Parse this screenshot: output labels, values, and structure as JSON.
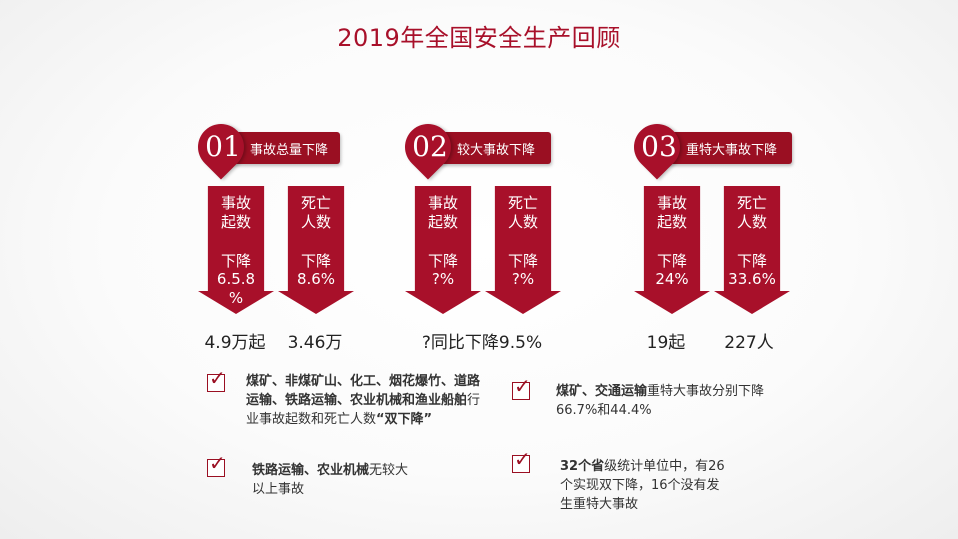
{
  "title": "2019年全国安全生产回顾",
  "groups": [
    {
      "num": "01",
      "label": "事故总量下降",
      "arrows": [
        {
          "head": "事故\n起数",
          "line1": "下降",
          "line2": "6.5.8\n%",
          "value": "4.9万起"
        },
        {
          "head": "死亡\n人数",
          "line1": "下降",
          "line2": "8.6%",
          "value": "3.46万"
        }
      ]
    },
    {
      "num": "02",
      "label": "较大事故下降",
      "arrows": [
        {
          "head": "事故\n起数",
          "line1": "下降",
          "line2": "?%"
        },
        {
          "head": "死亡\n人数",
          "line1": "下降",
          "line2": "?%"
        }
      ],
      "value": "?同比下降9.5%"
    },
    {
      "num": "03",
      "label": "重特大事故下降",
      "arrows": [
        {
          "head": "事故\n起数",
          "line1": "下降",
          "line2": "24%",
          "value": "19起"
        },
        {
          "head": "死亡\n人数",
          "line1": "下降",
          "line2": "33.6%",
          "value": "227人"
        }
      ]
    }
  ],
  "notes": [
    {
      "bold": "煤矿、非煤矿山、化工、烟花爆竹、道路运输、铁路运输、农业机械和渔业船舶",
      "plain": "行业事故起数和死亡人数",
      "bold2": "“双下降”"
    },
    {
      "bold": "铁路运输、农业机械",
      "plain": "无较大以上事故"
    },
    {
      "bold": "煤矿、交通运输",
      "plain": "重特大事故分别下降66.7%和44.4%"
    },
    {
      "bold": "32个省",
      "plain": "级统计单位中，有26个实现双下降，16个没有发生重特大事故"
    }
  ],
  "check_glyph": "✓",
  "colors": {
    "accent": "#a8102a",
    "accent_dark": "#9a0f22"
  }
}
